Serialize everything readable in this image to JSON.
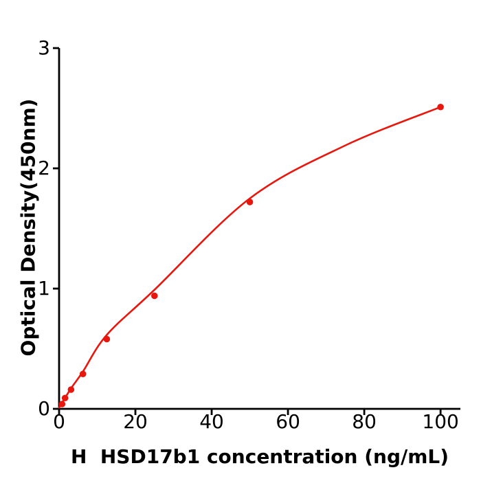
{
  "figure": {
    "background_color": "#ffffff",
    "accent_color": "#e8160c",
    "axis_color": "#000000"
  },
  "chart_data": {
    "type": "scatter",
    "title": "",
    "xlabel": "H  HSD17b1 concentration (ng/mL)",
    "ylabel": "Optical Density(450nm)",
    "xlim": [
      0,
      105.2
    ],
    "ylim": [
      0,
      3
    ],
    "xticks": [
      0,
      20,
      40,
      60,
      80,
      100
    ],
    "yticks": [
      0,
      1,
      2,
      3
    ],
    "grid": false,
    "legend_position": "none",
    "series": [
      {
        "name": "standard-data-points",
        "type": "scatter",
        "color": "#e8160c",
        "points": [
          {
            "x": 0.78,
            "y": 0.04
          },
          {
            "x": 1.56,
            "y": 0.09
          },
          {
            "x": 3.125,
            "y": 0.16
          },
          {
            "x": 6.25,
            "y": 0.29
          },
          {
            "x": 12.5,
            "y": 0.58
          },
          {
            "x": 25,
            "y": 0.94
          },
          {
            "x": 50,
            "y": 1.72
          },
          {
            "x": 100,
            "y": 2.51
          }
        ]
      },
      {
        "name": "fitted-curve",
        "type": "line",
        "color": "#e8160c",
        "points": [
          {
            "x": 0,
            "y": 0.01
          },
          {
            "x": 3.125,
            "y": 0.17
          },
          {
            "x": 6.25,
            "y": 0.31
          },
          {
            "x": 12.5,
            "y": 0.615
          },
          {
            "x": 25,
            "y": 0.99
          },
          {
            "x": 50,
            "y": 1.75
          },
          {
            "x": 75,
            "y": 2.19
          },
          {
            "x": 100,
            "y": 2.51
          }
        ]
      }
    ]
  }
}
